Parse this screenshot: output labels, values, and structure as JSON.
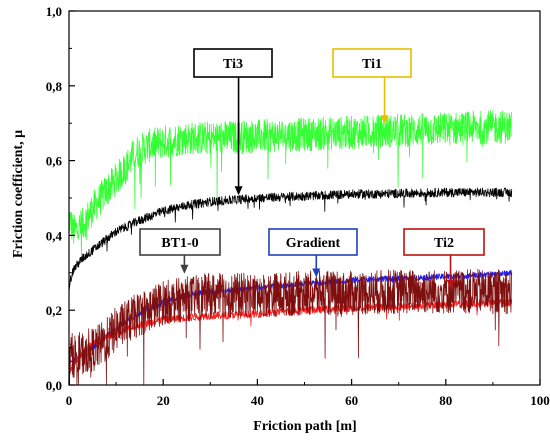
{
  "chart_data": {
    "type": "line",
    "xlabel": "Friction path [m]",
    "ylabel": "Friction coefficient, μ",
    "xlim": [
      0,
      100
    ],
    "ylim": [
      0,
      1.0
    ],
    "x_ticks": [
      0,
      20,
      40,
      60,
      80,
      100
    ],
    "y_ticks": [
      0.0,
      0.2,
      0.4,
      0.6,
      0.8,
      1.0
    ],
    "x_tick_labels": [
      "0",
      "20",
      "40",
      "60",
      "80",
      "100"
    ],
    "y_tick_labels": [
      "0,0",
      "0,2",
      "0,4",
      "0,6",
      "0,8",
      "1,0"
    ],
    "grid": false,
    "series": [
      {
        "name": "Ti1",
        "color": "#33ff33",
        "noise": 0.045,
        "x": [
          0,
          1,
          3,
          5,
          8,
          10,
          12,
          14,
          17,
          20,
          25,
          30,
          40,
          50,
          60,
          70,
          80,
          90,
          94
        ],
        "y": [
          0.45,
          0.41,
          0.43,
          0.47,
          0.52,
          0.55,
          0.58,
          0.62,
          0.64,
          0.65,
          0.66,
          0.66,
          0.665,
          0.67,
          0.675,
          0.68,
          0.685,
          0.69,
          0.69
        ]
      },
      {
        "name": "Ti3",
        "color": "#000000",
        "noise": 0.012,
        "x": [
          0,
          1,
          3,
          5,
          10,
          15,
          20,
          25,
          30,
          40,
          50,
          60,
          70,
          80,
          90,
          94
        ],
        "y": [
          0.27,
          0.31,
          0.34,
          0.36,
          0.41,
          0.44,
          0.465,
          0.48,
          0.49,
          0.5,
          0.505,
          0.51,
          0.512,
          0.515,
          0.515,
          0.515
        ]
      },
      {
        "name": "Gradient",
        "color": "#1a1aff",
        "noise": 0.008,
        "x": [
          0,
          2,
          5,
          8,
          12,
          16,
          20,
          25,
          30,
          40,
          50,
          60,
          70,
          80,
          90,
          94
        ],
        "y": [
          0.06,
          0.07,
          0.1,
          0.13,
          0.17,
          0.2,
          0.22,
          0.24,
          0.25,
          0.26,
          0.27,
          0.28,
          0.285,
          0.29,
          0.295,
          0.3
        ]
      },
      {
        "name": "Ti2",
        "color": "#ff2020",
        "noise": 0.01,
        "x": [
          0,
          1,
          3,
          5,
          10,
          15,
          20,
          30,
          40,
          50,
          60,
          70,
          80,
          90,
          94
        ],
        "y": [
          0.03,
          0.06,
          0.09,
          0.11,
          0.14,
          0.16,
          0.175,
          0.185,
          0.19,
          0.2,
          0.205,
          0.21,
          0.215,
          0.22,
          0.22
        ]
      },
      {
        "name": "BT1-0",
        "color": "#7f0f0f",
        "noise": 0.06,
        "x": [
          0,
          2,
          4,
          6,
          8,
          10,
          15,
          20,
          25,
          30,
          40,
          50,
          60,
          70,
          80,
          90,
          94
        ],
        "y": [
          0.08,
          0.08,
          0.09,
          0.1,
          0.12,
          0.15,
          0.19,
          0.22,
          0.23,
          0.24,
          0.24,
          0.245,
          0.245,
          0.25,
          0.25,
          0.25,
          0.25
        ]
      }
    ],
    "annotations": [
      {
        "label": "Ti3",
        "color": "#000000",
        "box_color": "#000000",
        "point": [
          36,
          0.51
        ]
      },
      {
        "label": "Ti1",
        "color": "#000000",
        "box_color": "#e8c000",
        "point": [
          67,
          0.7
        ]
      },
      {
        "label": "BT1-0",
        "color": "#000000",
        "box_color": "#404040",
        "point": [
          24.5,
          0.3
        ]
      },
      {
        "label": "Gradient",
        "color": "#000000",
        "box_color": "#2040c0",
        "point": [
          52.5,
          0.29
        ]
      },
      {
        "label": "Ti2",
        "color": "#000000",
        "box_color": "#c01010",
        "point": [
          81,
          0.26
        ]
      }
    ]
  }
}
